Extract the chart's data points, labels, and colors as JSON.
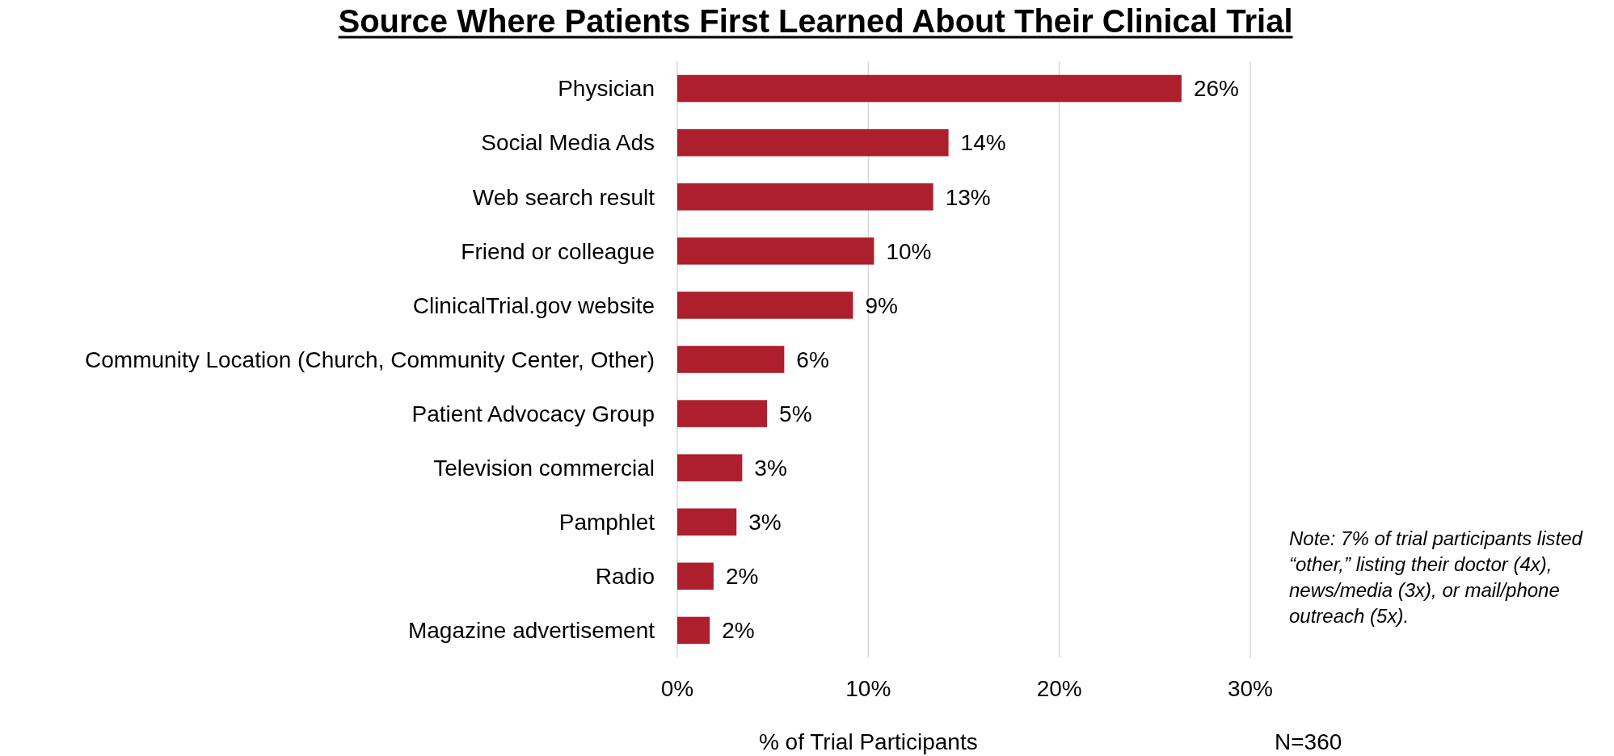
{
  "chart_data": {
    "type": "bar",
    "orientation": "horizontal",
    "title": "Source Where Patients First Learned About Their Clinical Trial",
    "xlabel": "% of Trial Participants",
    "categories": [
      "Physician",
      "Social Media Ads",
      "Web search result",
      "Friend or colleague",
      "ClinicalTrial.gov website",
      "Community Location (Church, Community Center, Other)",
      "Patient Advocacy Group",
      "Television commercial",
      "Pamphlet",
      "Radio",
      "Magazine advertisement"
    ],
    "values": [
      26.4,
      14.2,
      13.4,
      10.3,
      9.2,
      5.6,
      4.7,
      3.4,
      3.1,
      1.9,
      1.7
    ],
    "value_labels": [
      "26%",
      "14%",
      "13%",
      "10%",
      "9%",
      "6%",
      "5%",
      "3%",
      "3%",
      "2%",
      "2%"
    ],
    "color": "#ae1f2e",
    "xlim": [
      0,
      30
    ],
    "xticks": [
      {
        "value": 0,
        "label": "0%"
      },
      {
        "value": 10,
        "label": "10%"
      },
      {
        "value": 20,
        "label": "20%"
      },
      {
        "value": 30,
        "label": "30%"
      }
    ],
    "grid": "x",
    "legend": false,
    "annotations": [
      "Note: 7% of trial participants listed “other,” listing their doctor (4x), news/media (3x), or mail/phone outreach (5x).",
      "N=360"
    ]
  }
}
